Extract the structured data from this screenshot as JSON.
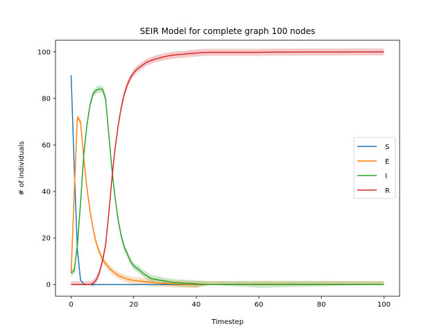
{
  "chart_data": {
    "type": "line",
    "title": "SEIR Model for complete graph 100 nodes",
    "xlabel": "Timestep",
    "ylabel": "# of individuals",
    "xlim": [
      -5,
      105
    ],
    "ylim": [
      -5,
      105
    ],
    "xticks": [
      0,
      20,
      40,
      60,
      80,
      100
    ],
    "yticks": [
      0,
      20,
      40,
      60,
      80,
      100
    ],
    "grid": false,
    "legend_position": "center-right",
    "series": [
      {
        "name": "S",
        "color": "#1f77b4",
        "band": 0,
        "points": [
          [
            0,
            90
          ],
          [
            1,
            50
          ],
          [
            2,
            15
          ],
          [
            3,
            2
          ],
          [
            4,
            0.3
          ],
          [
            5,
            0
          ],
          [
            100,
            0
          ]
        ]
      },
      {
        "name": "E",
        "color": "#ff7f0e",
        "band": 1.5,
        "points": [
          [
            0,
            5
          ],
          [
            1,
            40
          ],
          [
            2,
            72
          ],
          [
            3,
            70
          ],
          [
            4,
            55
          ],
          [
            5,
            42
          ],
          [
            6,
            32
          ],
          [
            7,
            24
          ],
          [
            8,
            18
          ],
          [
            9,
            14
          ],
          [
            10,
            11
          ],
          [
            11,
            9
          ],
          [
            12,
            7.5
          ],
          [
            13,
            6
          ],
          [
            14,
            5
          ],
          [
            15,
            4
          ],
          [
            16,
            3.3
          ],
          [
            17,
            2.8
          ],
          [
            18,
            2.4
          ],
          [
            19,
            2
          ],
          [
            20,
            1.8
          ],
          [
            22,
            1.5
          ],
          [
            24,
            1.2
          ],
          [
            26,
            0.9
          ],
          [
            28,
            0.6
          ],
          [
            30,
            0.5
          ],
          [
            32,
            0.3
          ],
          [
            34,
            0.2
          ],
          [
            36,
            0.1
          ],
          [
            40,
            0.05
          ],
          [
            45,
            0
          ],
          [
            100,
            0
          ]
        ]
      },
      {
        "name": "I",
        "color": "#2ca02c",
        "band": 1.5,
        "points": [
          [
            0,
            5
          ],
          [
            1,
            6
          ],
          [
            2,
            17
          ],
          [
            3,
            35
          ],
          [
            4,
            55
          ],
          [
            5,
            68
          ],
          [
            6,
            77
          ],
          [
            7,
            82
          ],
          [
            8,
            83.5
          ],
          [
            9,
            84
          ],
          [
            10,
            84
          ],
          [
            11,
            80
          ],
          [
            12,
            65
          ],
          [
            13,
            50
          ],
          [
            14,
            38
          ],
          [
            15,
            28
          ],
          [
            16,
            21
          ],
          [
            17,
            16
          ],
          [
            18,
            13
          ],
          [
            19,
            10
          ],
          [
            20,
            8
          ],
          [
            21,
            7
          ],
          [
            22,
            6
          ],
          [
            23,
            4.8
          ],
          [
            24,
            4
          ],
          [
            25,
            3
          ],
          [
            26,
            2.5
          ],
          [
            28,
            2
          ],
          [
            30,
            1.5
          ],
          [
            32,
            1
          ],
          [
            34,
            0.8
          ],
          [
            36,
            0.6
          ],
          [
            38,
            0.5
          ],
          [
            40,
            0.3
          ],
          [
            44,
            0
          ],
          [
            60,
            0.1
          ],
          [
            100,
            0
          ]
        ]
      },
      {
        "name": "R",
        "color": "#d62728",
        "band": 1.5,
        "points": [
          [
            0,
            0
          ],
          [
            4,
            0
          ],
          [
            6,
            0
          ],
          [
            7,
            0.5
          ],
          [
            8,
            2
          ],
          [
            9,
            5
          ],
          [
            10,
            10
          ],
          [
            11,
            17
          ],
          [
            12,
            30
          ],
          [
            13,
            45
          ],
          [
            14,
            58
          ],
          [
            15,
            68
          ],
          [
            16,
            76
          ],
          [
            17,
            82
          ],
          [
            18,
            86
          ],
          [
            19,
            89
          ],
          [
            20,
            91
          ],
          [
            21,
            92.5
          ],
          [
            22,
            93.5
          ],
          [
            23,
            94.5
          ],
          [
            24,
            95.5
          ],
          [
            25,
            96
          ],
          [
            26,
            96.5
          ],
          [
            27,
            97
          ],
          [
            28,
            97.3
          ],
          [
            30,
            98
          ],
          [
            32,
            98.5
          ],
          [
            34,
            98.8
          ],
          [
            36,
            99
          ],
          [
            38,
            99.3
          ],
          [
            40,
            99.5
          ],
          [
            42,
            99.7
          ],
          [
            44,
            99.8
          ],
          [
            50,
            99.8
          ],
          [
            60,
            99.8
          ],
          [
            64,
            99.9
          ],
          [
            100,
            100
          ]
        ]
      }
    ]
  }
}
